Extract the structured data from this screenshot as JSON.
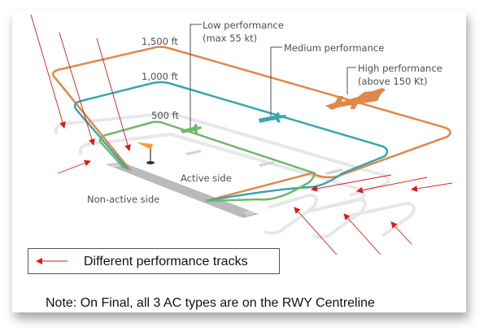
{
  "diagram": {
    "altitudes": {
      "high": "1,500 ft",
      "medium": "1,000 ft",
      "low": "500 ft"
    },
    "aircraft": {
      "low": {
        "line1": "Low performance",
        "line2": "(max 55 kt)"
      },
      "medium": {
        "line1": "Medium performance"
      },
      "high": {
        "line1": "High performance",
        "line2": "(above 150 Kt)"
      }
    },
    "sides": {
      "active": "Active side",
      "non_active": "Non-active side"
    },
    "colors": {
      "high": "#e0874a",
      "medium": "#3aa5ad",
      "low": "#6db96a",
      "arrow": "#e01818",
      "runway": "#b9babd"
    }
  },
  "legend": {
    "label": "Different performance tracks",
    "icon": "red-arrow-icon"
  },
  "note": "Note: On Final, all 3 AC types are on the RWY Centreline"
}
